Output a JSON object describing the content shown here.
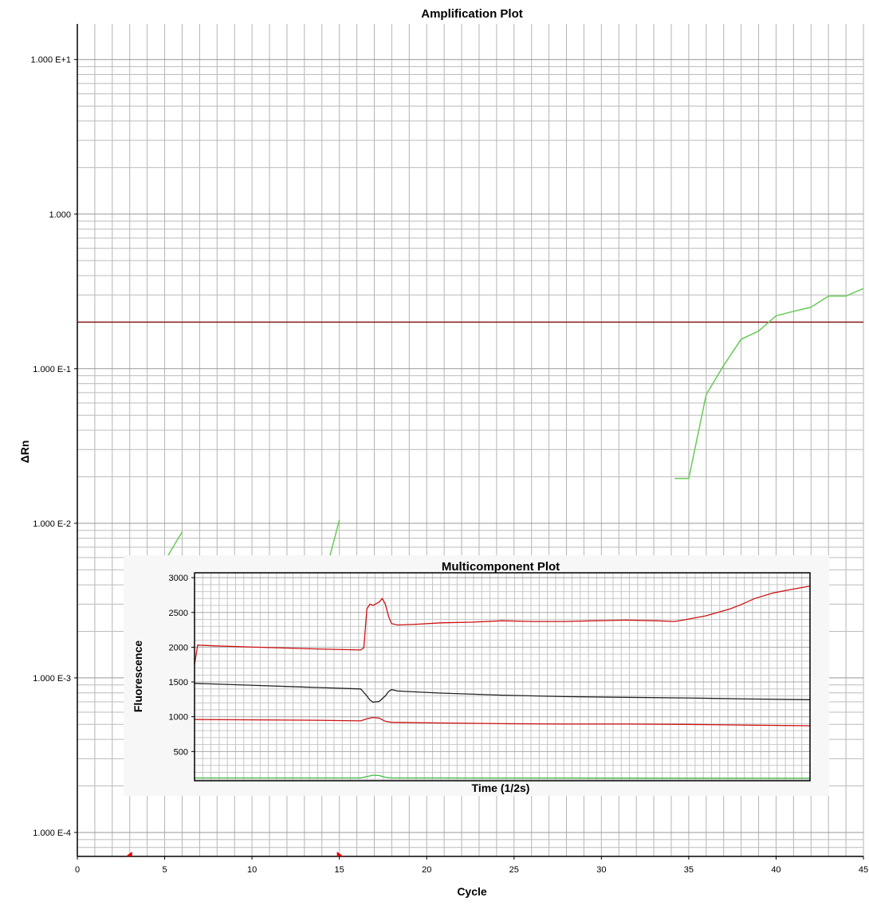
{
  "chart_data": [
    {
      "type": "line",
      "title": "Amplification Plot",
      "xlabel": "Cycle",
      "ylabel": "ΔRn",
      "xlim": [
        0,
        45
      ],
      "ylim": [
        7e-05,
        17
      ],
      "yscale": "log",
      "grid": true,
      "x_ticks": [
        0,
        5,
        10,
        15,
        20,
        25,
        30,
        35,
        40,
        45
      ],
      "y_ticks": [
        {
          "value": 10,
          "label": "1.000 E+1"
        },
        {
          "value": 1,
          "label": "1.000"
        },
        {
          "value": 0.1,
          "label": "1.000 E-1"
        },
        {
          "value": 0.01,
          "label": "1.000 E-2"
        },
        {
          "value": 0.001,
          "label": "1.000 E-3"
        },
        {
          "value": 0.0001,
          "label": "1.000 E-4"
        }
      ],
      "threshold": {
        "value": 0.2,
        "color": "#8b1a1a"
      },
      "baseline_markers": {
        "cycles": [
          3,
          15
        ],
        "color": "#e00000"
      },
      "series": [
        {
          "color": "#66cc55",
          "points": [
            [
              34.2,
              0.0195
            ],
            [
              35,
              0.0195
            ],
            [
              36,
              0.068
            ],
            [
              37,
              0.105
            ],
            [
              38,
              0.155
            ],
            [
              39,
              0.175
            ],
            [
              40,
              0.22
            ],
            [
              41,
              0.235
            ],
            [
              42,
              0.25
            ],
            [
              43,
              0.295
            ],
            [
              44,
              0.295
            ],
            [
              45,
              0.33
            ]
          ]
        },
        {
          "color": "#66cc55",
          "points": [
            [
              5,
              0.0057
            ],
            [
              6,
              0.0088
            ]
          ]
        },
        {
          "color": "#66cc55",
          "points": [
            [
              14.4,
              0.0058
            ],
            [
              15,
              0.0105
            ]
          ]
        }
      ]
    },
    {
      "type": "line",
      "title": "Multicomponent Plot",
      "xlabel": "Time (1/2s)",
      "ylabel": "Fluorescence",
      "xlim": [
        0,
        100
      ],
      "ylim": [
        80,
        3070
      ],
      "grid": true,
      "y_ticks": [
        500,
        1000,
        1500,
        2000,
        2500,
        3000
      ],
      "series": [
        {
          "color": "#cc1111",
          "points": [
            [
              0,
              1750
            ],
            [
              0.5,
              2030
            ],
            [
              3,
              2020
            ],
            [
              10,
              2000
            ],
            [
              20,
              1975
            ],
            [
              27,
              1960
            ],
            [
              27.5,
              1990
            ],
            [
              28,
              2550
            ],
            [
              28.5,
              2620
            ],
            [
              29,
              2600
            ],
            [
              30,
              2650
            ],
            [
              30.5,
              2700
            ],
            [
              31,
              2620
            ],
            [
              31.5,
              2450
            ],
            [
              32,
              2340
            ],
            [
              33,
              2320
            ],
            [
              36,
              2330
            ],
            [
              40,
              2350
            ],
            [
              45,
              2360
            ],
            [
              50,
              2380
            ],
            [
              55,
              2370
            ],
            [
              60,
              2370
            ],
            [
              65,
              2380
            ],
            [
              70,
              2390
            ],
            [
              75,
              2380
            ],
            [
              78,
              2370
            ],
            [
              80,
              2400
            ],
            [
              83,
              2450
            ],
            [
              85,
              2500
            ],
            [
              87,
              2550
            ],
            [
              89,
              2620
            ],
            [
              91,
              2700
            ],
            [
              94,
              2780
            ],
            [
              97,
              2830
            ],
            [
              100,
              2880
            ]
          ]
        },
        {
          "color": "#222222",
          "points": [
            [
              0,
              1480
            ],
            [
              10,
              1450
            ],
            [
              20,
              1420
            ],
            [
              27,
              1400
            ],
            [
              28,
              1300
            ],
            [
              28.5,
              1240
            ],
            [
              29,
              1210
            ],
            [
              30,
              1220
            ],
            [
              31,
              1300
            ],
            [
              31.5,
              1360
            ],
            [
              32,
              1390
            ],
            [
              33,
              1370
            ],
            [
              40,
              1340
            ],
            [
              50,
              1310
            ],
            [
              60,
              1290
            ],
            [
              70,
              1280
            ],
            [
              80,
              1270
            ],
            [
              90,
              1255
            ],
            [
              100,
              1245
            ]
          ]
        },
        {
          "color": "#cc1111",
          "points": [
            [
              0,
              960
            ],
            [
              10,
              955
            ],
            [
              20,
              950
            ],
            [
              27,
              940
            ],
            [
              28,
              970
            ],
            [
              29,
              990
            ],
            [
              30,
              980
            ],
            [
              31,
              935
            ],
            [
              32,
              920
            ],
            [
              40,
              910
            ],
            [
              50,
              900
            ],
            [
              60,
              895
            ],
            [
              70,
              895
            ],
            [
              80,
              890
            ],
            [
              90,
              880
            ],
            [
              100,
              870
            ]
          ]
        },
        {
          "color": "#44bb44",
          "points": [
            [
              0,
              120
            ],
            [
              27,
              120
            ],
            [
              28,
              140
            ],
            [
              29,
              160
            ],
            [
              30,
              155
            ],
            [
              31,
              130
            ],
            [
              32,
              120
            ],
            [
              100,
              115
            ]
          ]
        }
      ]
    }
  ]
}
